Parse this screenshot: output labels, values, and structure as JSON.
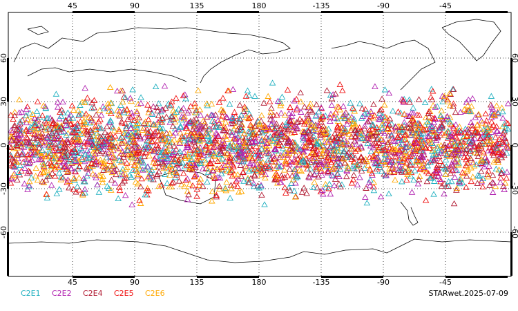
{
  "map": {
    "lonticks": [
      {
        "value": 45,
        "label": "45"
      },
      {
        "value": 90,
        "label": "90"
      },
      {
        "value": 135,
        "label": "135"
      },
      {
        "value": 180,
        "label": "180"
      },
      {
        "value": 225,
        "label": "-135"
      },
      {
        "value": 270,
        "label": "-90"
      },
      {
        "value": 315,
        "label": "-45"
      }
    ],
    "latticks": [
      60,
      30,
      0,
      -30,
      -60
    ],
    "legend": [
      {
        "name": "C2E1",
        "color": "#20b0c0"
      },
      {
        "name": "C2E2",
        "color": "#b020b0"
      },
      {
        "name": "C2E4",
        "color": "#b01830"
      },
      {
        "name": "C2E5",
        "color": "#f01010"
      },
      {
        "name": "C2E6",
        "color": "#ffa800"
      }
    ],
    "footer": "STARwet.2025-07-09"
  }
}
